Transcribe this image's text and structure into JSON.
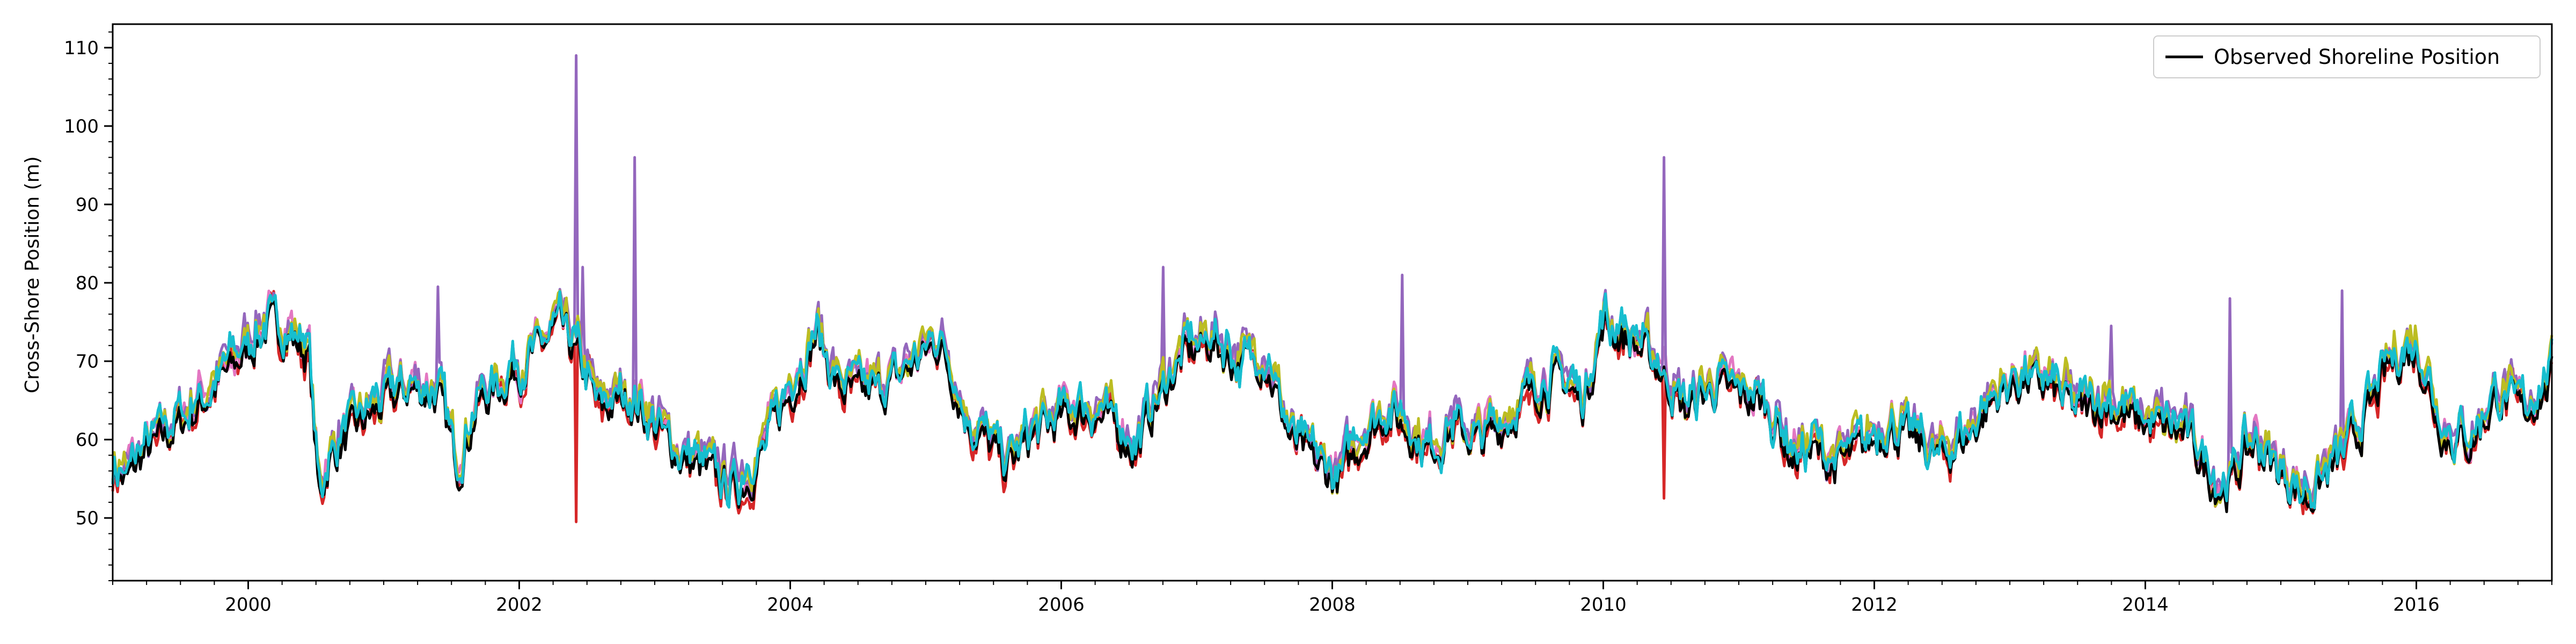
{
  "chart_data": {
    "type": "line",
    "title": "",
    "xlabel": "",
    "ylabel": "Cross-Shore Position (m)",
    "xlim": [
      1999.0,
      2017.0
    ],
    "ylim": [
      42,
      113
    ],
    "x_ticks": [
      2000,
      2002,
      2004,
      2006,
      2008,
      2010,
      2012,
      2014,
      2016
    ],
    "x_tick_labels": [
      "2000",
      "2002",
      "2004",
      "2006",
      "2008",
      "2010",
      "2012",
      "2014",
      "2016"
    ],
    "y_ticks": [
      50,
      60,
      70,
      80,
      90,
      100,
      110
    ],
    "y_tick_labels": [
      "50",
      "60",
      "70",
      "80",
      "90",
      "100",
      "110"
    ],
    "grid": false,
    "legend": {
      "placement": "top-right",
      "entries": [
        "Observed Shoreline Position"
      ]
    },
    "colors": {
      "observed": "#000000",
      "ensemble": [
        "#d62728",
        "#e377c2",
        "#9467bd",
        "#bcbd22",
        "#17becf"
      ]
    },
    "series": [
      {
        "name": "Observed Shoreline Position",
        "color": "#000000",
        "x": [
          1999.0,
          1999.1,
          1999.2,
          1999.4,
          1999.6,
          1999.8,
          2000.0,
          2000.15,
          2000.3,
          2000.45,
          2000.52,
          2000.6,
          2000.8,
          2001.0,
          2001.2,
          2001.4,
          2001.55,
          2001.7,
          2001.9,
          2002.1,
          2002.3,
          2002.45,
          2002.6,
          2002.8,
          2003.0,
          2003.2,
          2003.4,
          2003.6,
          2003.75,
          2003.9,
          2004.1,
          2004.2,
          2004.35,
          2004.5,
          2004.7,
          2004.9,
          2005.1,
          2005.3,
          2005.45,
          2005.6,
          2005.8,
          2006.0,
          2006.2,
          2006.4,
          2006.55,
          2006.7,
          2006.9,
          2007.1,
          2007.3,
          2007.5,
          2007.7,
          2007.9,
          2008.05,
          2008.2,
          2008.4,
          2008.55,
          2008.7,
          2008.9,
          2009.1,
          2009.3,
          2009.5,
          2009.7,
          2009.85,
          2010.0,
          2010.2,
          2010.4,
          2010.6,
          2010.8,
          2011.0,
          2011.2,
          2011.4,
          2011.55,
          2011.7,
          2011.9,
          2012.1,
          2012.3,
          2012.5,
          2012.7,
          2012.9,
          2013.1,
          2013.3,
          2013.5,
          2013.7,
          2013.9,
          2014.1,
          2014.3,
          2014.5,
          2014.6,
          2014.8,
          2015.0,
          2015.2,
          2015.4,
          2015.6,
          2015.8,
          2016.0,
          2016.2,
          2016.4,
          2016.6,
          2016.8,
          2017.0
        ],
        "values": [
          57,
          55,
          58,
          61,
          64,
          68,
          72,
          75,
          74,
          71,
          53,
          58,
          62,
          65,
          67,
          66,
          57,
          65,
          68,
          71,
          75,
          70,
          64,
          66,
          62,
          58,
          56,
          54,
          57,
          63,
          70,
          74,
          67,
          66,
          67,
          70,
          73,
          63,
          60,
          57,
          61,
          63,
          64,
          62,
          59,
          65,
          71,
          73,
          70,
          71,
          60,
          57,
          55,
          60,
          64,
          62,
          59,
          62,
          60,
          63,
          67,
          68,
          65,
          75,
          73,
          70,
          64,
          67,
          66,
          65,
          58,
          59,
          57,
          59,
          62,
          60,
          58,
          61,
          66,
          68,
          67,
          64,
          65,
          63,
          62,
          61,
          55,
          54,
          60,
          56,
          53,
          57,
          62,
          70,
          72,
          61,
          60,
          66,
          64,
          68
        ]
      }
    ]
  }
}
